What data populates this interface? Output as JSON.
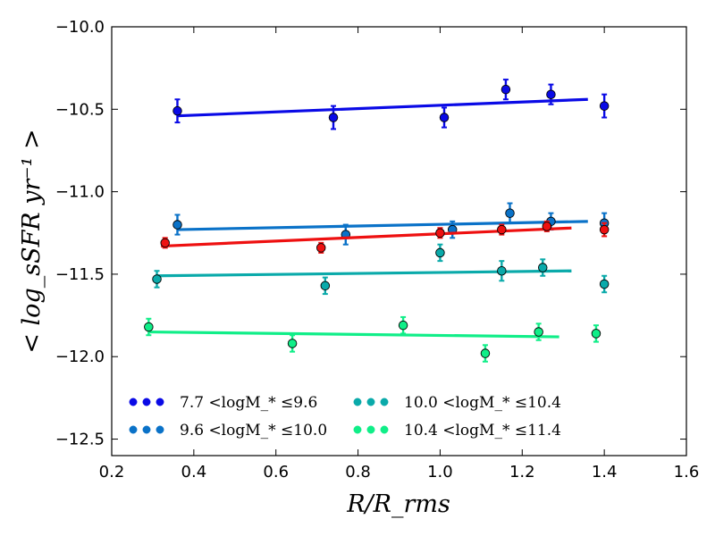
{
  "chart_data": {
    "type": "scatter",
    "title": "",
    "xlabel": "R/R_rms",
    "ylabel": "< log_sSFR yr⁻¹ >",
    "xlim": [
      0.2,
      1.6
    ],
    "ylim": [
      -12.6,
      -10.0
    ],
    "xticks": [
      0.2,
      0.4,
      0.6,
      0.8,
      1.0,
      1.2,
      1.4,
      1.6
    ],
    "xtick_labels": [
      "0.2",
      "0.4",
      "0.6",
      "0.8",
      "1.0",
      "1.2",
      "1.4",
      "1.6"
    ],
    "yticks": [
      -12.5,
      -12.0,
      -11.5,
      -11.0,
      -10.5,
      -10.0
    ],
    "ytick_labels": [
      "−12.5",
      "−12.0",
      "−11.5",
      "−11.0",
      "−10.5",
      "−10.0"
    ],
    "grid": false,
    "legend_placement": "lower-left",
    "series": [
      {
        "name": "7.7 <logM_* ≤9.6",
        "color": "#0a0ae6",
        "x": [
          0.36,
          0.74,
          1.01,
          1.16,
          1.27,
          1.4
        ],
        "y": [
          -10.51,
          -10.55,
          -10.55,
          -10.38,
          -10.41,
          -10.48
        ],
        "yerr": [
          0.07,
          0.07,
          0.06,
          0.06,
          0.06,
          0.07
        ],
        "fit": [
          [
            0.36,
            -10.54
          ],
          [
            1.36,
            -10.44
          ]
        ]
      },
      {
        "name": "9.6 <logM_* ≤10.0",
        "color": "#0a72c8",
        "x": [
          0.36,
          0.77,
          1.03,
          1.17,
          1.27,
          1.4
        ],
        "y": [
          -11.2,
          -11.26,
          -11.23,
          -11.13,
          -11.18,
          -11.19
        ],
        "yerr": [
          0.06,
          0.06,
          0.05,
          0.06,
          0.05,
          0.06
        ],
        "fit": [
          [
            0.36,
            -11.23
          ],
          [
            1.36,
            -11.18
          ]
        ]
      },
      {
        "name": "",
        "color": "#ee1010",
        "x": [
          0.33,
          0.71,
          1.0,
          1.15,
          1.26,
          1.4
        ],
        "y": [
          -11.31,
          -11.34,
          -11.25,
          -11.23,
          -11.21,
          -11.23
        ],
        "yerr": [
          0.03,
          0.03,
          0.03,
          0.03,
          0.03,
          0.04
        ],
        "fit": [
          [
            0.32,
            -11.33
          ],
          [
            1.32,
            -11.22
          ]
        ]
      },
      {
        "name": "10.0 <logM_* ≤10.4",
        "color": "#0aaaaa",
        "x": [
          0.31,
          0.72,
          1.0,
          1.15,
          1.25,
          1.4
        ],
        "y": [
          -11.53,
          -11.57,
          -11.37,
          -11.48,
          -11.46,
          -11.56
        ],
        "yerr": [
          0.05,
          0.05,
          0.05,
          0.06,
          0.05,
          0.05
        ],
        "fit": [
          [
            0.31,
            -11.51
          ],
          [
            1.32,
            -11.48
          ]
        ]
      },
      {
        "name": "10.4 <logM_* ≤11.4",
        "color": "#10ee88",
        "x": [
          0.29,
          0.64,
          0.91,
          1.11,
          1.24,
          1.38
        ],
        "y": [
          -11.82,
          -11.92,
          -11.81,
          -11.98,
          -11.85,
          -11.86
        ],
        "yerr": [
          0.05,
          0.05,
          0.05,
          0.05,
          0.05,
          0.05
        ],
        "fit": [
          [
            0.29,
            -11.85
          ],
          [
            1.29,
            -11.88
          ]
        ]
      }
    ]
  }
}
